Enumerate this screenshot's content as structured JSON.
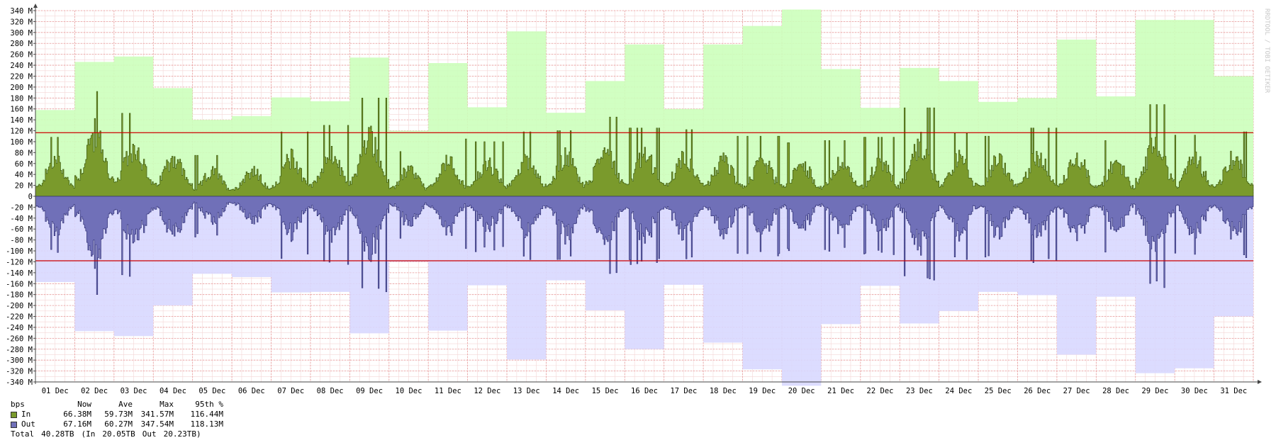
{
  "chart_data": {
    "type": "area",
    "unit_label": "bps",
    "y_ticks": [
      "340 M",
      "320 M",
      "300 M",
      "280 M",
      "260 M",
      "240 M",
      "220 M",
      "200 M",
      "180 M",
      "160 M",
      "140 M",
      "120 M",
      "100 M",
      "80 M",
      "60 M",
      "40 M",
      "20 M",
      "0",
      "-20 M",
      "-40 M",
      "-60 M",
      "-80 M",
      "-100 M",
      "-120 M",
      "-140 M",
      "-160 M",
      "-180 M",
      "-200 M",
      "-220 M",
      "-240 M",
      "-260 M",
      "-280 M",
      "-300 M",
      "-320 M",
      "-340 M"
    ],
    "ylim": [
      -340,
      340
    ],
    "x_labels": [
      "01 Dec",
      "02 Dec",
      "03 Dec",
      "04 Dec",
      "05 Dec",
      "06 Dec",
      "07 Dec",
      "08 Dec",
      "09 Dec",
      "10 Dec",
      "11 Dec",
      "12 Dec",
      "13 Dec",
      "14 Dec",
      "15 Dec",
      "16 Dec",
      "17 Dec",
      "18 Dec",
      "19 Dec",
      "20 Dec",
      "21 Dec",
      "22 Dec",
      "23 Dec",
      "24 Dec",
      "25 Dec",
      "26 Dec",
      "27 Dec",
      "28 Dec",
      "29 Dec",
      "30 Dec",
      "31 Dec"
    ],
    "series": [
      {
        "name": "In",
        "color": "#7a9a2c",
        "daily_max": [
          158,
          246,
          256,
          198,
          140,
          147,
          181,
          174,
          254,
          120,
          244,
          163,
          302,
          153,
          211,
          278,
          160,
          278,
          312,
          342,
          233,
          162,
          235,
          211,
          173,
          180,
          287,
          183,
          323,
          323,
          220
        ],
        "daily_peak": [
          108,
          192,
          152,
          120,
          75,
          78,
          118,
          130,
          180,
          82,
          105,
          100,
          118,
          120,
          145,
          125,
          122,
          110,
          110,
          98,
          102,
          108,
          162,
          115,
          110,
          125,
          120,
          102,
          168,
          112,
          118
        ]
      },
      {
        "name": "Out",
        "color": "#7070b8",
        "daily_max": [
          157,
          247,
          256,
          200,
          142,
          148,
          176,
          175,
          251,
          120,
          246,
          163,
          299,
          154,
          209,
          280,
          162,
          268,
          317,
          347,
          234,
          164,
          233,
          210,
          175,
          181,
          290,
          184,
          324,
          315,
          220
        ],
        "daily_peak": [
          108,
          190,
          150,
          122,
          76,
          80,
          115,
          128,
          178,
          84,
          106,
          102,
          118,
          120,
          145,
          126,
          122,
          110,
          112,
          100,
          104,
          108,
          162,
          116,
          112,
          122,
          124,
          104,
          168,
          114,
          118
        ]
      }
    ],
    "percentile_95": {
      "in": 116.44,
      "out": -118.13,
      "color": "#cc0000"
    },
    "watermark": "RRDTOOL / TOBI OETIKER"
  },
  "legend": {
    "header": {
      "unit": "bps",
      "now": "Now",
      "ave": "Ave",
      "max": "Max",
      "p95": "95th %"
    },
    "rows": [
      {
        "label": "In",
        "color": "#7a9a2c",
        "now": "66.38M",
        "ave": "59.73M",
        "max": "341.57M",
        "p95": "116.44M"
      },
      {
        "label": "Out",
        "color": "#7070b8",
        "now": "67.16M",
        "ave": "60.27M",
        "max": "347.54M",
        "p95": "118.13M"
      }
    ],
    "total": {
      "label": "Total",
      "value": "40.28TB",
      "in_label": "(In",
      "in_value": "20.05TB",
      "out_label": "Out",
      "out_value": "20.23TB)"
    }
  }
}
